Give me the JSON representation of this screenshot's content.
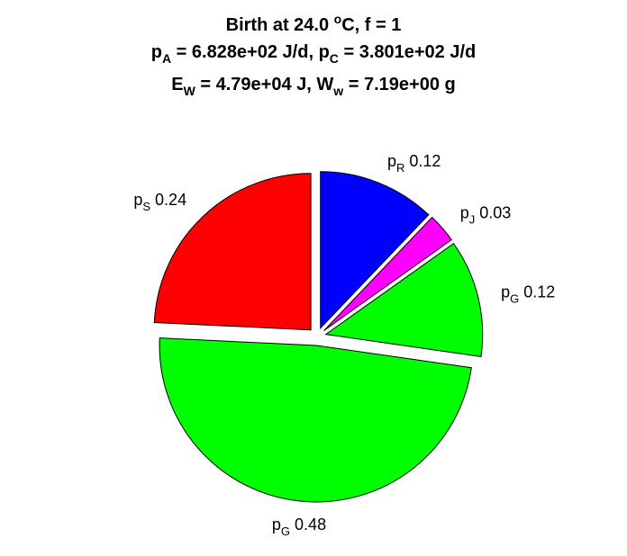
{
  "title": {
    "line1_pre": "Birth at 24.0 ",
    "line1_sup": "o",
    "line1_post": "C, f = 1",
    "line2_a": "p",
    "line2_a_sub": "A",
    "line2_a_val": " = 6.828e+02 J/d, ",
    "line2_c": "p",
    "line2_c_sub": "C",
    "line2_c_val": " = 3.801e+02 J/d",
    "line3_e": "E",
    "line3_e_sub": "W",
    "line3_e_val": " = 4.79e+04 J, ",
    "line3_w": "W",
    "line3_w_sub": "w",
    "line3_w_val": " = 7.19e+00 g"
  },
  "chart_data": {
    "type": "pie",
    "slices": [
      {
        "symbol": "p",
        "sub": "R",
        "value": 0.12,
        "label_value": "0.12",
        "color": "#0000ff"
      },
      {
        "symbol": "p",
        "sub": "J",
        "value": 0.03,
        "label_value": "0.03",
        "color": "#ff00ff"
      },
      {
        "symbol": "p",
        "sub": "G",
        "value": 0.12,
        "label_value": "0.12",
        "color": "#00ff00"
      },
      {
        "symbol": "p",
        "sub": "G",
        "value": 0.48,
        "label_value": "0.48",
        "color": "#00ff00"
      },
      {
        "symbol": "p",
        "sub": "S",
        "value": 0.24,
        "label_value": "0.24",
        "color": "#ff0000"
      }
    ]
  }
}
